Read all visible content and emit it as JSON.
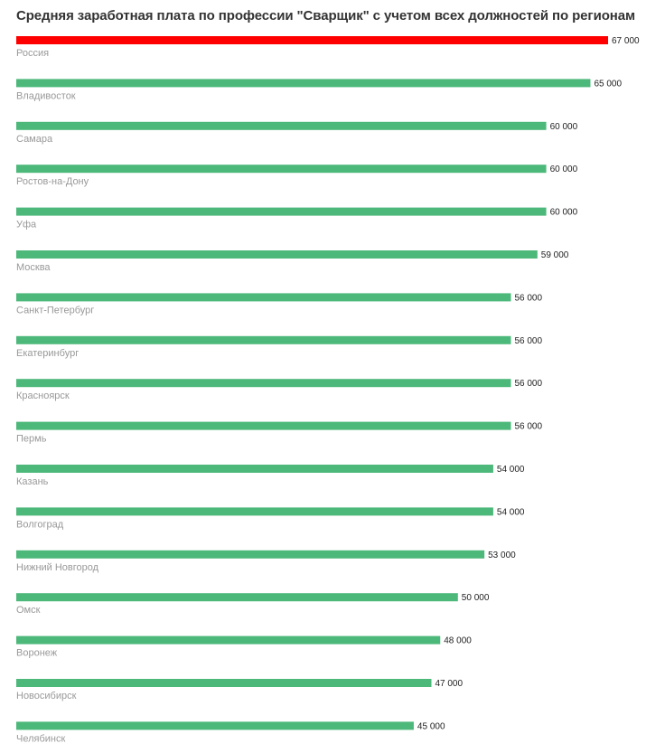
{
  "chart_data": {
    "type": "bar",
    "orientation": "horizontal",
    "title": "Средняя заработная плата по профессии \"Сварщик\" с учетом всех должностей по регионам",
    "xlabel": "",
    "ylabel": "",
    "grid": false,
    "xlim": [
      0,
      67000
    ],
    "categories": [
      "Россия",
      "Владивосток",
      "Самара",
      "Ростов-на-Дону",
      "Уфа",
      "Москва",
      "Санкт-Петербург",
      "Екатеринбург",
      "Красноярск",
      "Пермь",
      "Казань",
      "Волгоград",
      "Нижний Новгород",
      "Омск",
      "Воронеж",
      "Новосибирск",
      "Челябинск"
    ],
    "values": [
      67000,
      65000,
      60000,
      60000,
      60000,
      59000,
      56000,
      56000,
      56000,
      56000,
      54000,
      54000,
      53000,
      50000,
      48000,
      47000,
      45000
    ],
    "value_labels": [
      "67 000",
      "65 000",
      "60 000",
      "60 000",
      "60 000",
      "59 000",
      "56 000",
      "56 000",
      "56 000",
      "56 000",
      "54 000",
      "54 000",
      "53 000",
      "50 000",
      "48 000",
      "47 000",
      "45 000"
    ],
    "colors": {
      "highlight": "#ff0000",
      "default": "#4cb87a"
    },
    "highlight_index": 0
  }
}
